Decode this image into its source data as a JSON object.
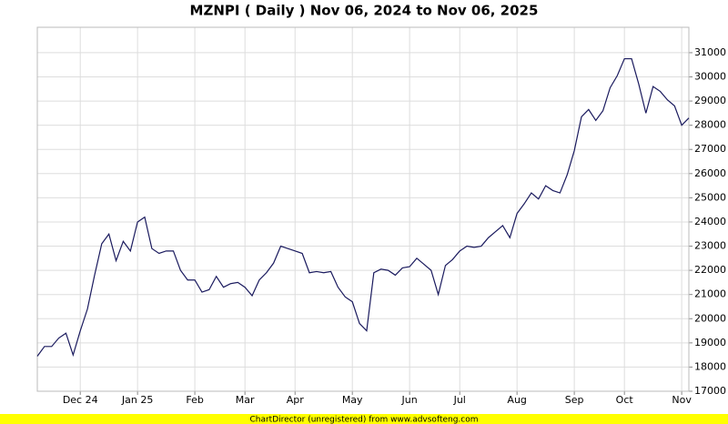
{
  "chart_data": {
    "type": "line",
    "title": "MZNPI ( Daily ) Nov 06, 2024 to Nov 06, 2025",
    "footer": "ChartDirector (unregistered) from www.advsofteng.com",
    "categories": [
      null,
      null,
      null,
      null,
      null,
      null,
      "Dec 24",
      null,
      null,
      null,
      null,
      null,
      null,
      null,
      "Jan 25",
      null,
      null,
      null,
      null,
      null,
      null,
      null,
      "Feb",
      null,
      null,
      null,
      null,
      null,
      null,
      "Mar",
      null,
      null,
      null,
      null,
      null,
      null,
      "Apr",
      null,
      null,
      null,
      null,
      null,
      null,
      null,
      "May",
      null,
      null,
      null,
      null,
      null,
      null,
      null,
      "Jun",
      null,
      null,
      null,
      null,
      null,
      null,
      "Jul",
      null,
      null,
      null,
      null,
      null,
      null,
      null,
      "Aug",
      null,
      null,
      null,
      null,
      null,
      null,
      null,
      "Sep",
      null,
      null,
      null,
      null,
      null,
      null,
      "Oct",
      null,
      null,
      null,
      null,
      null,
      null,
      null,
      "Nov",
      null
    ],
    "values": [
      18450,
      18850,
      18850,
      19200,
      19400,
      18500,
      19500,
      20400,
      21800,
      23100,
      23500,
      22400,
      23200,
      22800,
      24000,
      24200,
      22900,
      22700,
      22800,
      22800,
      22000,
      21600,
      21600,
      21100,
      21200,
      21750,
      21300,
      21450,
      21500,
      21300,
      20950,
      21600,
      21900,
      22300,
      23000,
      22900,
      22800,
      22700,
      21900,
      21950,
      21900,
      21950,
      21300,
      20900,
      20700,
      19800,
      19500,
      21900,
      22050,
      22000,
      21800,
      22100,
      22150,
      22500,
      22250,
      22000,
      21000,
      22200,
      22450,
      22800,
      23000,
      22950,
      23000,
      23350,
      23600,
      23850,
      23350,
      24350,
      24750,
      25200,
      24950,
      25500,
      25300,
      25200,
      25950,
      26950,
      28350,
      28650,
      28200,
      28600,
      29550,
      30050,
      30750,
      30750,
      29700,
      28500,
      29600,
      29400,
      29050,
      28800,
      28000,
      28300
    ],
    "color": "#1a1a5e",
    "ylim": [
      17000,
      32050
    ],
    "yticks": [
      17000,
      18000,
      19000,
      20000,
      21000,
      22000,
      23000,
      24000,
      25000,
      26000,
      27000,
      28000,
      29000,
      30000,
      31000
    ],
    "grid": true
  }
}
